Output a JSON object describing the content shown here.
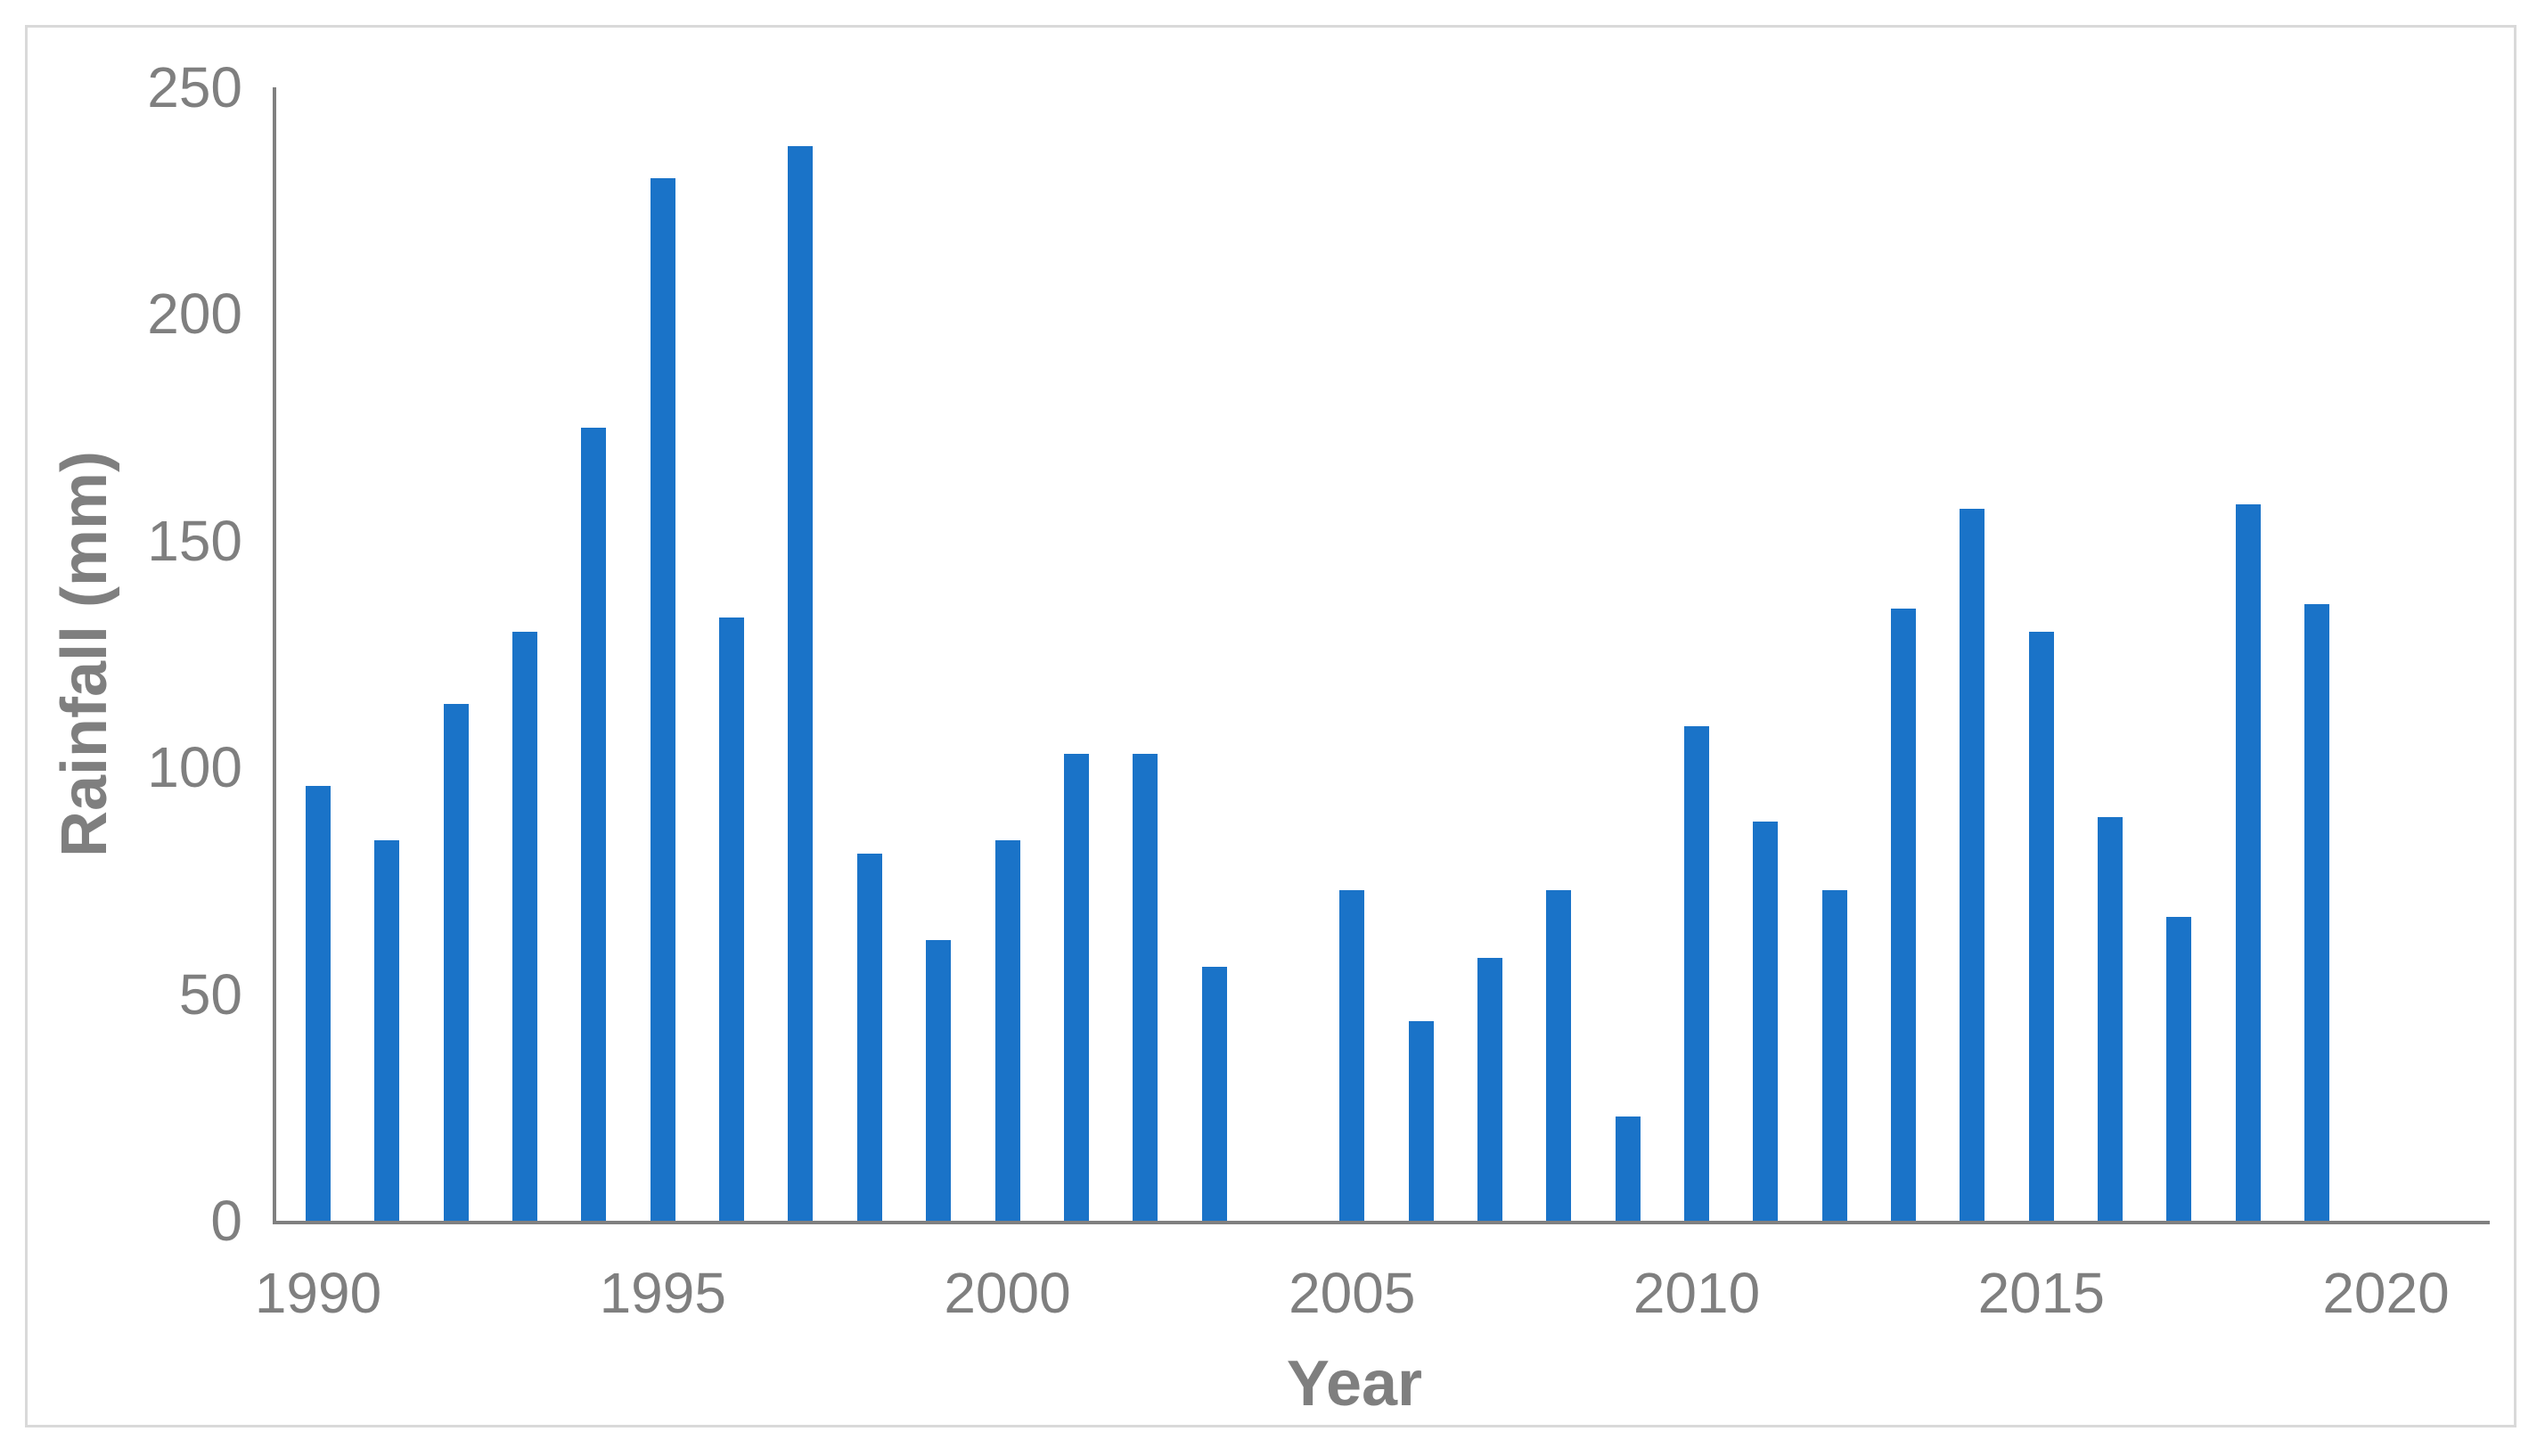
{
  "figure": {
    "background_color": "#ffffff",
    "border_color": "#d9d9d9"
  },
  "chart_data": {
    "type": "bar",
    "title": "",
    "xlabel": "Year",
    "ylabel": "Rainfall (mm)",
    "categories": [
      1990,
      1991,
      1992,
      1993,
      1994,
      1995,
      1996,
      1997,
      1998,
      1999,
      2000,
      2001,
      2002,
      2003,
      2004,
      2005,
      2006,
      2007,
      2008,
      2009,
      2010,
      2011,
      2012,
      2013,
      2014,
      2015,
      2016,
      2017,
      2018,
      2019
    ],
    "values": [
      96,
      84,
      114,
      130,
      175,
      230,
      133,
      237,
      81,
      62,
      84,
      103,
      103,
      56,
      null,
      73,
      44,
      58,
      73,
      23,
      109,
      88,
      73,
      135,
      157,
      130,
      89,
      67,
      158,
      136
    ],
    "ylim": [
      0,
      250
    ],
    "y_ticks": [
      250,
      200,
      150,
      100,
      50,
      0
    ],
    "x_tick_years": [
      1990,
      1995,
      2000,
      2005,
      2010,
      2015,
      2020
    ],
    "bar_color": "#1a73c8",
    "axis_color": "#808080",
    "label_color": "#7f7f7f",
    "grid": false,
    "legend": false
  }
}
